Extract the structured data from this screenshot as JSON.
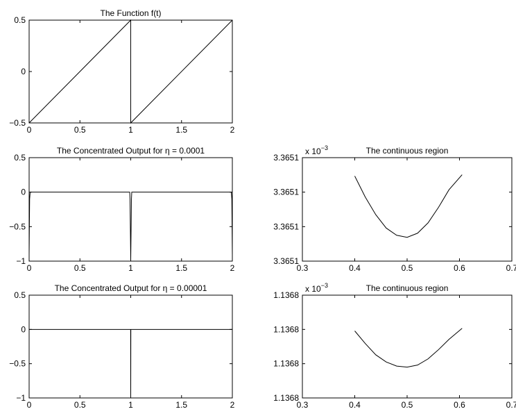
{
  "chart_data": [
    {
      "type": "line",
      "title": "The Function f(t)",
      "xlim": [
        0,
        2
      ],
      "ylim": [
        -0.5,
        0.5
      ],
      "xticks": [
        0,
        0.5,
        1,
        1.5,
        2
      ],
      "xtick_labels": [
        "0",
        "0.5",
        "1",
        "1.5",
        "2"
      ],
      "yticks": [
        -0.5,
        0,
        0.5
      ],
      "ytick_labels": [
        "−0.5",
        "0",
        "0.5"
      ],
      "exponent_label": "",
      "series": [
        {
          "x": [
            0,
            1,
            1,
            2
          ],
          "y": [
            -0.5,
            0.5,
            -0.5,
            0.5
          ]
        }
      ]
    },
    {
      "type": "line",
      "title": "The Concentrated Output for η = 0.0001",
      "xlim": [
        0,
        2
      ],
      "ylim": [
        -1,
        0.5
      ],
      "xticks": [
        0,
        0.5,
        1,
        1.5,
        2
      ],
      "xtick_labels": [
        "0",
        "0.5",
        "1",
        "1.5",
        "2"
      ],
      "yticks": [
        -1,
        -0.5,
        0,
        0.5
      ],
      "ytick_labels": [
        "−1",
        "−0.5",
        "0",
        "0.5"
      ],
      "exponent_label": "",
      "series": [
        {
          "x": [
            0,
            0.005,
            0.01,
            0.99,
            0.993,
            1.0,
            1.007,
            1.01,
            1.99,
            1.995,
            2.0
          ],
          "y": [
            -0.9,
            -0.1,
            0,
            0,
            -0.1,
            -0.98,
            -0.1,
            0,
            0,
            -0.1,
            -0.9
          ]
        }
      ]
    },
    {
      "type": "line",
      "title": "The Concentrated Output for η = 0.00001",
      "xlim": [
        0,
        2
      ],
      "ylim": [
        -1,
        0.5
      ],
      "xticks": [
        0,
        0.5,
        1,
        1.5,
        2
      ],
      "xtick_labels": [
        "0",
        "0.5",
        "1",
        "1.5",
        "2"
      ],
      "yticks": [
        -1,
        -0.5,
        0,
        0.5
      ],
      "ytick_labels": [
        "−1",
        "−0.5",
        "0",
        "0.5"
      ],
      "exponent_label": "",
      "series": [
        {
          "x": [
            0,
            0.999,
            1.0,
            1.0,
            1.001,
            2.0
          ],
          "y": [
            0,
            0,
            -1,
            -1,
            0,
            0
          ]
        }
      ]
    },
    {
      "type": "line",
      "title": "The continuous region",
      "xlim": [
        0.3,
        0.7
      ],
      "ylim": [
        0,
        1
      ],
      "xticks": [
        0.3,
        0.4,
        0.5,
        0.6,
        0.7
      ],
      "xtick_labels": [
        "0.3",
        "0.4",
        "0.5",
        "0.6",
        "0.7"
      ],
      "yticks": [
        0,
        0.3333,
        0.6667,
        1
      ],
      "ytick_labels": [
        "3.3651",
        "3.3651",
        "3.3651",
        "3.3651"
      ],
      "exponent_label": "x 10",
      "exponent_power": "−3",
      "series": [
        {
          "x": [
            0.4,
            0.42,
            0.44,
            0.46,
            0.48,
            0.5,
            0.52,
            0.54,
            0.56,
            0.58,
            0.605
          ],
          "y": [
            0.822,
            0.62,
            0.45,
            0.32,
            0.25,
            0.23,
            0.27,
            0.37,
            0.52,
            0.69,
            0.835
          ]
        }
      ]
    },
    {
      "type": "line",
      "title": "The continuous region",
      "xlim": [
        0.3,
        0.7
      ],
      "ylim": [
        0,
        1
      ],
      "xticks": [
        0.3,
        0.4,
        0.5,
        0.6,
        0.7
      ],
      "xtick_labels": [
        "0.3",
        "0.4",
        "0.5",
        "0.6",
        "0.7"
      ],
      "yticks": [
        0,
        0.3333,
        0.6667,
        1
      ],
      "ytick_labels": [
        "1.1368",
        "1.1368",
        "1.1368",
        "1.1368"
      ],
      "exponent_label": "x 10",
      "exponent_power": "−3",
      "series": [
        {
          "x": [
            0.4,
            0.42,
            0.44,
            0.46,
            0.48,
            0.5,
            0.52,
            0.54,
            0.56,
            0.58,
            0.605
          ],
          "y": [
            0.652,
            0.53,
            0.42,
            0.35,
            0.31,
            0.3,
            0.32,
            0.38,
            0.47,
            0.57,
            0.677
          ]
        }
      ]
    }
  ]
}
